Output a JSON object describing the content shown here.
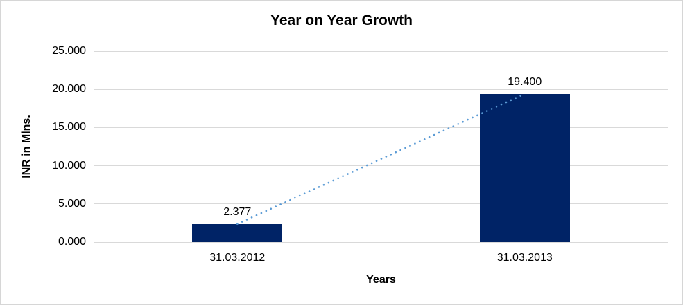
{
  "chart_data": {
    "type": "bar",
    "title": "Year on Year Growth",
    "xlabel": "Years",
    "ylabel": "INR in Mlns.",
    "categories": [
      "31.03.2012",
      "31.03.2013"
    ],
    "values": [
      2377,
      19400
    ],
    "value_labels": [
      "2.377",
      "19.400"
    ],
    "ylim": [
      0,
      25000
    ],
    "yticks": [
      0,
      5000,
      10000,
      15000,
      20000,
      25000
    ],
    "ytick_labels": [
      "0.000",
      "5.000",
      "10.000",
      "15.000",
      "20.000",
      "25.000"
    ],
    "grid": true,
    "legend": "none",
    "trendline": {
      "style": "dotted",
      "connects": [
        "31.03.2012",
        "31.03.2013"
      ]
    }
  },
  "colors": {
    "bar_fill": "#002366",
    "trendline": "#5b9bd5",
    "gridline": "#d9d9d9",
    "text": "#000000",
    "background": "#ffffff",
    "border": "#d6d6d6"
  }
}
